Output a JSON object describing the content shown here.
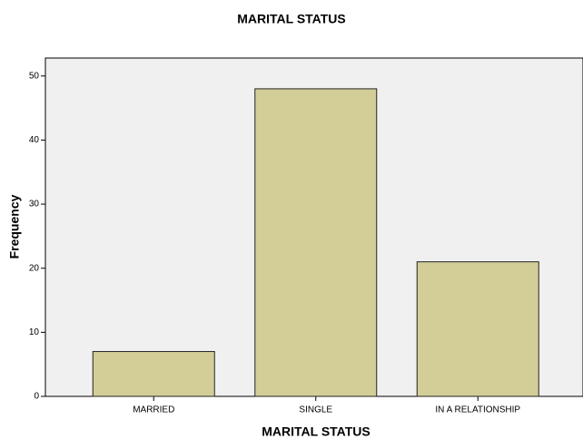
{
  "chart_data": {
    "type": "bar",
    "title": "MARITAL STATUS",
    "x_label": "MARITAL STATUS",
    "y_label": "Frequency",
    "categories": [
      "MARRIED",
      "SINGLE",
      "IN A RELATIONSHIP"
    ],
    "values": [
      7,
      48,
      21
    ],
    "color": "#d3ce97",
    "ylim": [
      0,
      52.8
    ],
    "yticks": [
      0,
      10,
      20,
      30,
      40,
      50
    ],
    "grid": false
  }
}
